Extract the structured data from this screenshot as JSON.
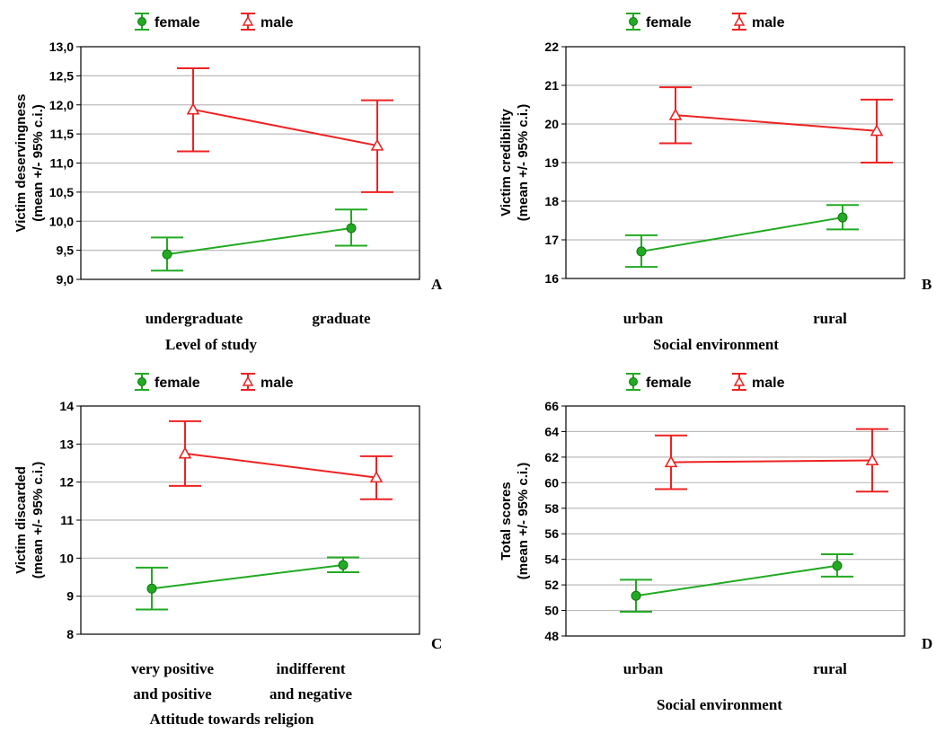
{
  "legend": {
    "female": "female",
    "male": "male"
  },
  "colors": {
    "female": "#22aa22",
    "male": "#ee2222",
    "grid": "#bbbbbb"
  },
  "chart_data": [
    {
      "type": "line",
      "panel_label": "A",
      "ylabel": [
        "Victim deservingness",
        "(mean +/- 95% c.i.)"
      ],
      "xlabel": "Level of study",
      "categories": [
        [
          "undergraduate"
        ],
        [
          "graduate"
        ]
      ],
      "ylim": [
        9.0,
        13.0
      ],
      "yticks": [
        "9,0",
        "9,5",
        "10,0",
        "10,5",
        "11,0",
        "11,5",
        "12,0",
        "12,5",
        "13,0"
      ],
      "grid": true,
      "series": [
        {
          "name": "female",
          "values": [
            9.43,
            9.88
          ],
          "ci_low": [
            9.15,
            9.58
          ],
          "ci_high": [
            9.72,
            10.2
          ]
        },
        {
          "name": "male",
          "values": [
            11.92,
            11.3
          ],
          "ci_low": [
            11.2,
            10.5
          ],
          "ci_high": [
            12.63,
            12.08
          ]
        }
      ]
    },
    {
      "type": "line",
      "panel_label": "B",
      "ylabel": [
        "Victim credibility",
        "(mean +/- 95% c.i.)"
      ],
      "xlabel": "Social environment",
      "categories": [
        [
          "urban"
        ],
        [
          "rural"
        ]
      ],
      "ylim": [
        16,
        22
      ],
      "yticks": [
        "16",
        "17",
        "18",
        "19",
        "20",
        "21",
        "22"
      ],
      "grid": true,
      "series": [
        {
          "name": "female",
          "values": [
            16.7,
            17.58
          ],
          "ci_low": [
            16.3,
            17.27
          ],
          "ci_high": [
            17.12,
            17.9
          ]
        },
        {
          "name": "male",
          "values": [
            20.23,
            19.82
          ],
          "ci_low": [
            19.5,
            19.0
          ],
          "ci_high": [
            20.95,
            20.63
          ]
        }
      ]
    },
    {
      "type": "line",
      "panel_label": "C",
      "ylabel": [
        "Victim discarded",
        "(mean +/- 95% c.i.)"
      ],
      "xlabel": "Attitude towards religion",
      "categories": [
        [
          "very positive",
          "and positive"
        ],
        [
          "indifferent",
          "and negative"
        ]
      ],
      "ylim": [
        8,
        14
      ],
      "yticks": [
        "8",
        "9",
        "10",
        "11",
        "12",
        "13",
        "14"
      ],
      "grid": true,
      "series": [
        {
          "name": "female",
          "values": [
            9.2,
            9.82
          ],
          "ci_low": [
            8.65,
            9.63
          ],
          "ci_high": [
            9.75,
            10.02
          ]
        },
        {
          "name": "male",
          "values": [
            12.75,
            12.12
          ],
          "ci_low": [
            11.9,
            11.55
          ],
          "ci_high": [
            13.6,
            12.68
          ]
        }
      ]
    },
    {
      "type": "line",
      "panel_label": "D",
      "ylabel": [
        "Total scores",
        "(mean +/- 95% c.i.)"
      ],
      "xlabel": "Social environment",
      "categories": [
        [
          "urban"
        ],
        [
          "rural"
        ]
      ],
      "ylim": [
        48,
        66
      ],
      "yticks": [
        "48",
        "50",
        "52",
        "54",
        "56",
        "58",
        "60",
        "62",
        "64",
        "66"
      ],
      "grid": true,
      "series": [
        {
          "name": "female",
          "values": [
            51.15,
            53.5
          ],
          "ci_low": [
            49.9,
            52.65
          ],
          "ci_high": [
            52.4,
            54.4
          ]
        },
        {
          "name": "male",
          "values": [
            61.6,
            61.75
          ],
          "ci_low": [
            59.5,
            59.3
          ],
          "ci_high": [
            63.7,
            64.2
          ]
        }
      ]
    }
  ]
}
